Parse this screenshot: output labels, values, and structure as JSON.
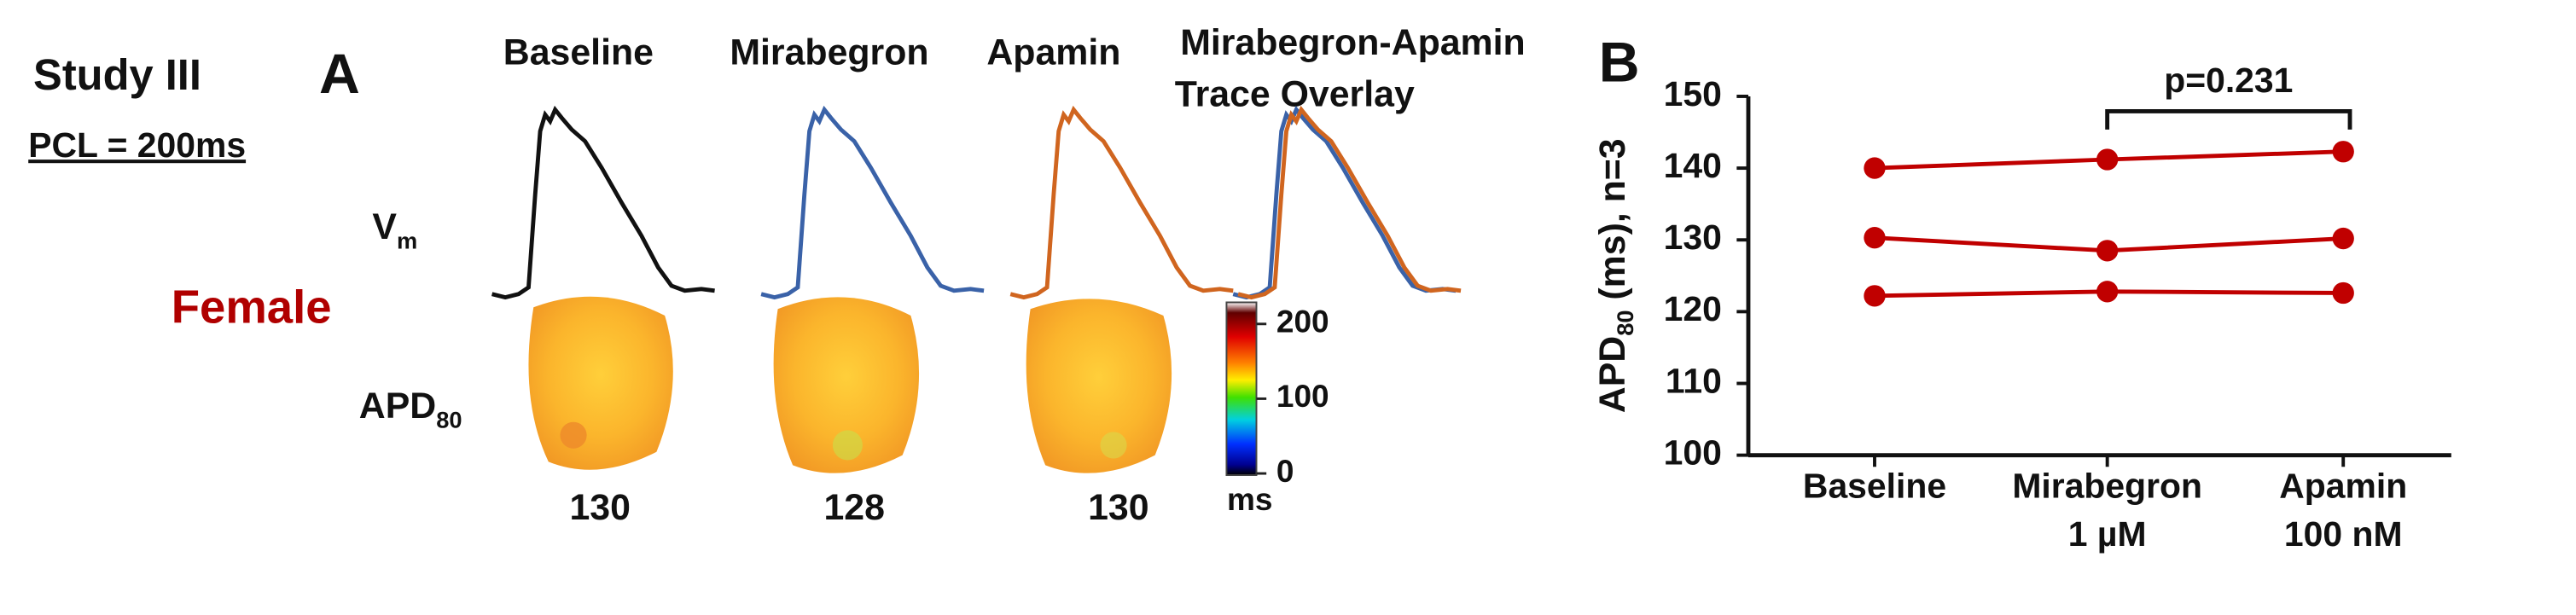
{
  "panel_a": {
    "study": "Study III",
    "pcl": "PCL = 200ms",
    "letter": "A",
    "headers": [
      "Baseline",
      "Mirabegron",
      "Apamin",
      "Mirabegron-Apamin",
      "Trace Overlay"
    ],
    "vm": {
      "text": "V",
      "sub": "m"
    },
    "sex": "Female",
    "apd": {
      "text": "APD",
      "sub": "80"
    },
    "map_values": [
      "130",
      "128",
      "130"
    ],
    "colorbar": {
      "lim": [
        0,
        220
      ],
      "ticks": [
        0,
        100,
        200
      ],
      "unit": "ms"
    }
  },
  "chart_data": {
    "type": "line",
    "letter": "B",
    "y_label": {
      "text": "APD",
      "sub": "80",
      "rest": " (ms), n=3"
    },
    "categories": [
      [
        "Baseline"
      ],
      [
        "Mirabegron",
        "1 µM"
      ],
      [
        "Apamin",
        "100 nM"
      ]
    ],
    "series": [
      {
        "color": "#c00000",
        "values": [
          140,
          141.2,
          142.3
        ]
      },
      {
        "color": "#c00000",
        "values": [
          130.3,
          128.5,
          130.2
        ]
      },
      {
        "color": "#c00000",
        "values": [
          122.2,
          122.8,
          122.6
        ]
      }
    ],
    "ylim": [
      100,
      150
    ],
    "yticks": [
      100,
      110,
      120,
      130,
      140,
      150
    ],
    "annotation": "p=0.231"
  }
}
